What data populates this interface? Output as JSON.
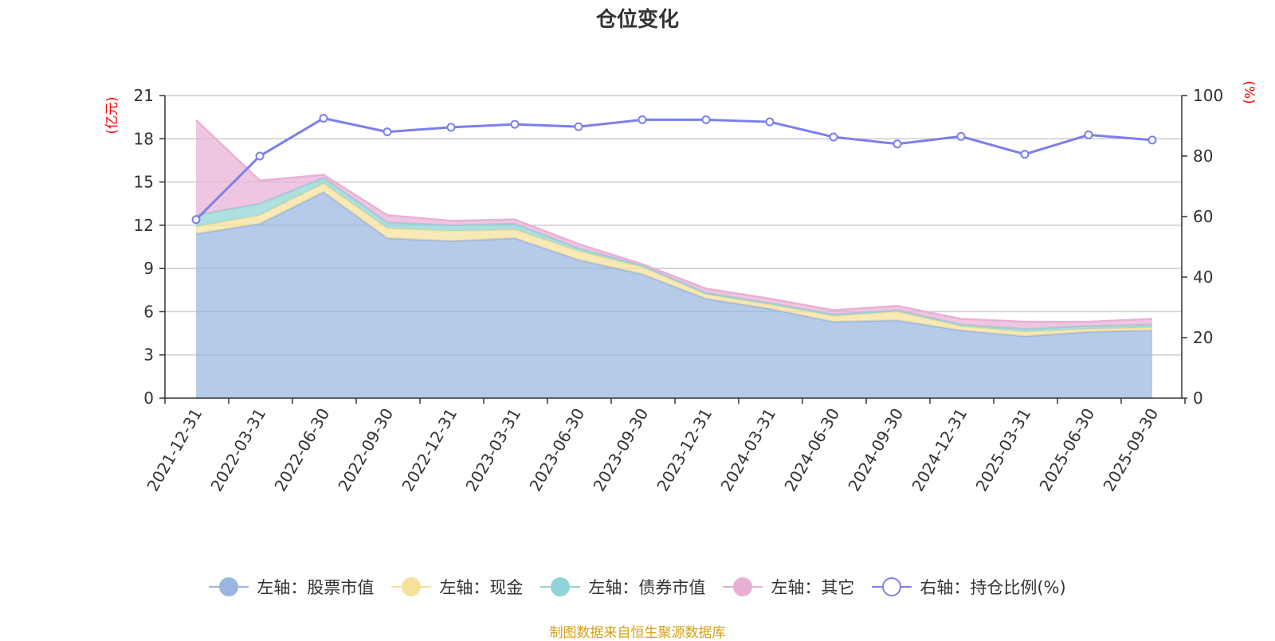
{
  "chart_data": {
    "title": "仓位变化",
    "type": "area",
    "x": [
      "2021-12-31",
      "2022-03-31",
      "2022-06-30",
      "2022-09-30",
      "2022-12-31",
      "2023-03-31",
      "2023-06-30",
      "2023-09-30",
      "2023-12-31",
      "2024-03-31",
      "2024-06-30",
      "2024-09-30",
      "2024-12-31",
      "2025-03-31",
      "2025-06-30",
      "2025-09-30"
    ],
    "y_left_label": "(亿元)",
    "y_left_ticks": [
      0,
      3,
      6,
      9,
      12,
      15,
      18,
      21
    ],
    "y_left_lim": [
      0,
      21
    ],
    "y_right_label": "(%)",
    "y_right_ticks": [
      0,
      20,
      40,
      60,
      80,
      100
    ],
    "y_right_lim": [
      0,
      100
    ],
    "series": [
      {
        "name": "左轴：股票市值",
        "type": "area",
        "axis": "left",
        "color": "#9ab6e0",
        "values": [
          11.4,
          12.1,
          14.3,
          11.1,
          10.9,
          11.1,
          9.6,
          8.6,
          6.9,
          6.2,
          5.3,
          5.4,
          4.7,
          4.3,
          4.6,
          4.7
        ]
      },
      {
        "name": "左轴：现金",
        "type": "area",
        "axis": "left",
        "color": "#f5e19a",
        "values": [
          0.5,
          0.6,
          0.6,
          0.7,
          0.7,
          0.6,
          0.6,
          0.5,
          0.3,
          0.3,
          0.4,
          0.6,
          0.3,
          0.3,
          0.2,
          0.2
        ]
      },
      {
        "name": "左轴：债券市值",
        "type": "area",
        "axis": "left",
        "color": "#8fd3d6",
        "values": [
          0.8,
          0.8,
          0.4,
          0.4,
          0.4,
          0.4,
          0.2,
          0.1,
          0.1,
          0.1,
          0.1,
          0.1,
          0.1,
          0.2,
          0.2,
          0.2
        ]
      },
      {
        "name": "左轴：其它",
        "type": "area",
        "axis": "left",
        "color": "#e9b0d6",
        "values": [
          6.6,
          1.6,
          0.2,
          0.5,
          0.3,
          0.3,
          0.3,
          0.1,
          0.3,
          0.3,
          0.3,
          0.3,
          0.4,
          0.5,
          0.3,
          0.4
        ]
      },
      {
        "name": "右轴：持仓比例(%)",
        "type": "line",
        "axis": "right",
        "color": "#7b7fec",
        "values": [
          59.0,
          80.0,
          92.5,
          88.0,
          89.5,
          90.5,
          89.7,
          92.0,
          92.0,
          91.3,
          86.3,
          84.0,
          86.5,
          80.6,
          87.0,
          85.3
        ]
      }
    ],
    "grid": true,
    "legend_position": "bottom"
  },
  "footer": {
    "source_note": "制图数据来自恒生聚源数据库"
  },
  "colors": {
    "axis_label": "#ff0000",
    "grid": "#cccccc",
    "axis": "#333333"
  }
}
